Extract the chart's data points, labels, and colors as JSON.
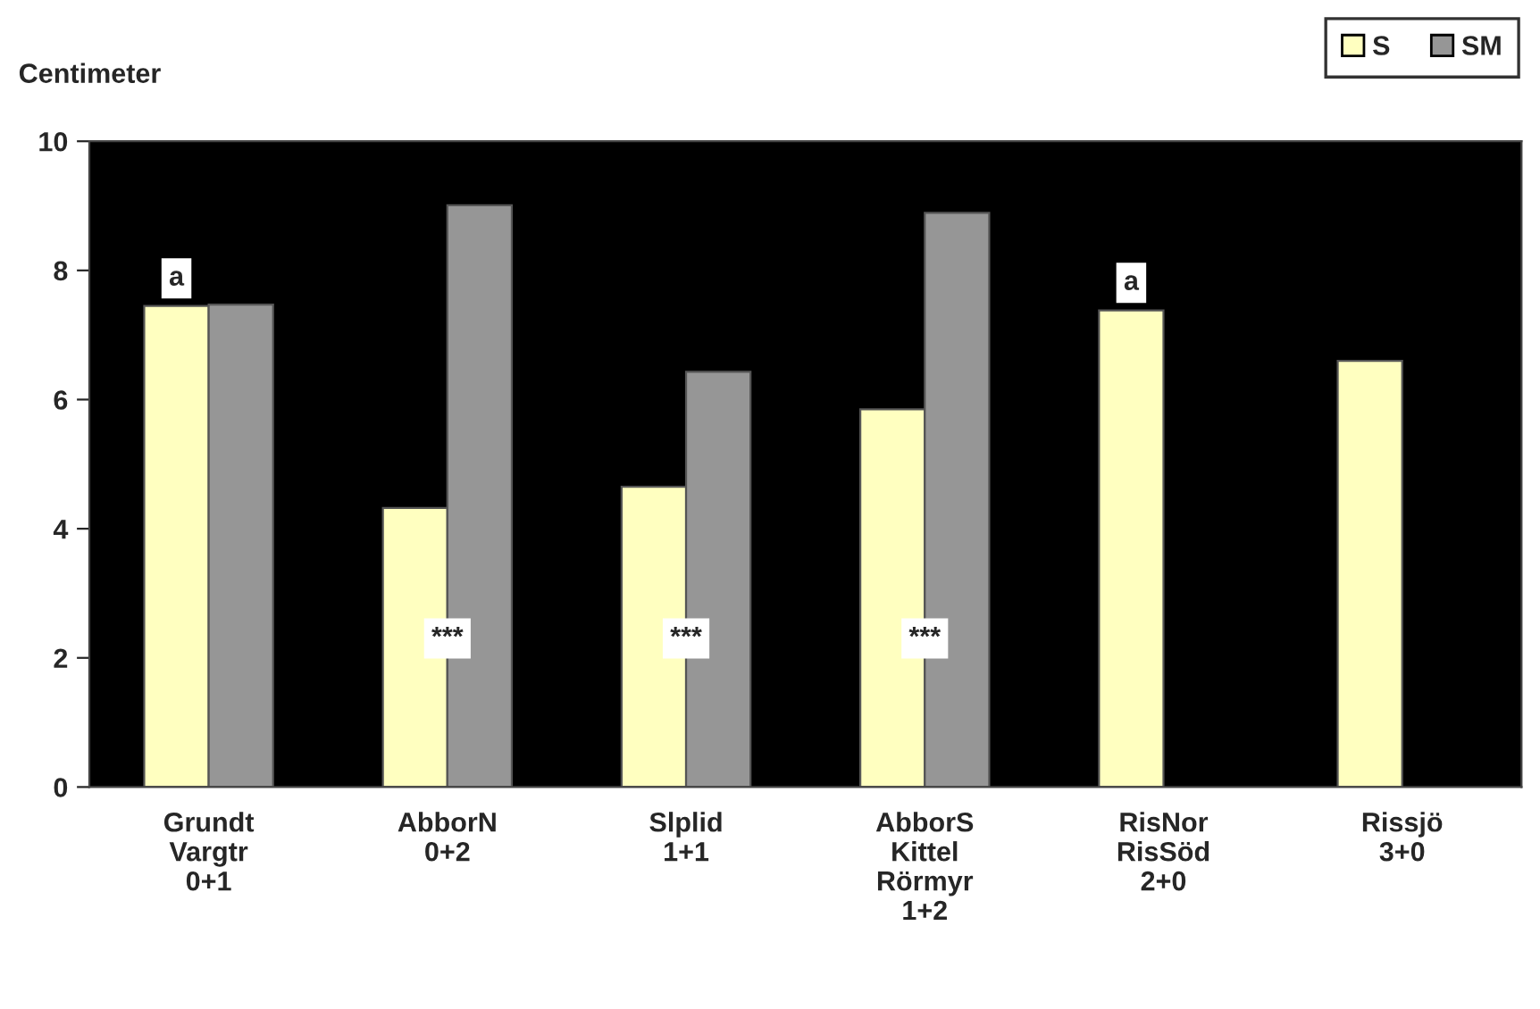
{
  "chart_data": {
    "type": "bar",
    "ylabel": "Centimeter",
    "categories": [
      "Grundt\nVargtr\n0+1",
      "AbborN\n0+2",
      "Slplid\n1+1",
      "AbborS\nKittel\nRörmyr\n1+2",
      "RisNor\nRisSöd\n2+0",
      "Rissjö\n3+0"
    ],
    "series": [
      {
        "name": "S",
        "color": "#ffffc0",
        "values": [
          7.45,
          4.32,
          4.65,
          5.85,
          7.38,
          6.6
        ]
      },
      {
        "name": "SM",
        "color": "#969696",
        "values": [
          7.47,
          9.01,
          6.43,
          8.89,
          null,
          null
        ]
      }
    ],
    "ylim": [
      0,
      10
    ],
    "yticks": [
      0,
      2,
      4,
      6,
      8,
      10
    ],
    "grid": false,
    "legend": "top right",
    "annotations": [
      {
        "text": "a",
        "x": "Grundt\nVargtr\n0+1",
        "y": 7.45
      },
      {
        "text": "***",
        "x": "AbborN\n0+2",
        "y": 2.3
      },
      {
        "text": "***",
        "x": "Slplid\n1+1",
        "y": 2.3
      },
      {
        "text": "***",
        "x": "AbborS\nKittel\nRörmyr\n1+2",
        "y": 2.3
      },
      {
        "text": "a",
        "x": "RisNor\nRisSöd\n2+0",
        "y": 7.38
      }
    ]
  }
}
